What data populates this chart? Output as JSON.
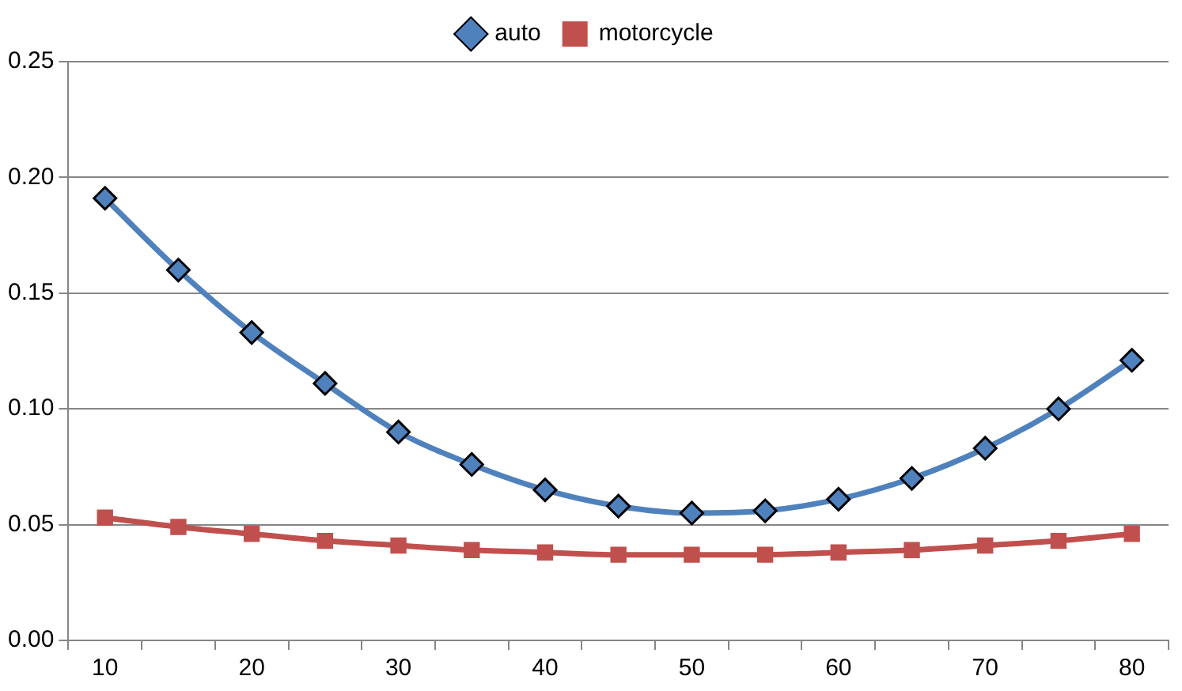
{
  "chart_data": {
    "type": "line",
    "categories": [
      "10",
      null,
      "20",
      null,
      "30",
      null,
      "40",
      null,
      "50",
      null,
      "60",
      null,
      "70",
      null,
      "80"
    ],
    "series": [
      {
        "name": "auto",
        "color": "#4f81bd",
        "marker": "diamond",
        "values": [
          0.191,
          0.16,
          0.133,
          0.111,
          0.09,
          0.076,
          0.065,
          0.058,
          0.055,
          0.056,
          0.061,
          0.07,
          0.083,
          0.1,
          0.121
        ]
      },
      {
        "name": "motorcycle",
        "color": "#c0504d",
        "marker": "square",
        "values": [
          0.053,
          0.049,
          0.046,
          0.043,
          0.041,
          0.039,
          0.038,
          0.037,
          0.037,
          0.037,
          0.038,
          0.039,
          0.041,
          0.043,
          0.046
        ]
      }
    ],
    "ylim": [
      0,
      0.25
    ],
    "yticks": [
      {
        "value": 0,
        "label": "0.00"
      },
      {
        "value": 0.05,
        "label": "0.05"
      },
      {
        "value": 0.1,
        "label": "0.10"
      },
      {
        "value": 0.15,
        "label": "0.15"
      },
      {
        "value": 0.2,
        "label": "0.20"
      },
      {
        "value": 0.25,
        "label": "0.25"
      }
    ],
    "grid": "y",
    "legend": "top",
    "line_style": "solid"
  }
}
